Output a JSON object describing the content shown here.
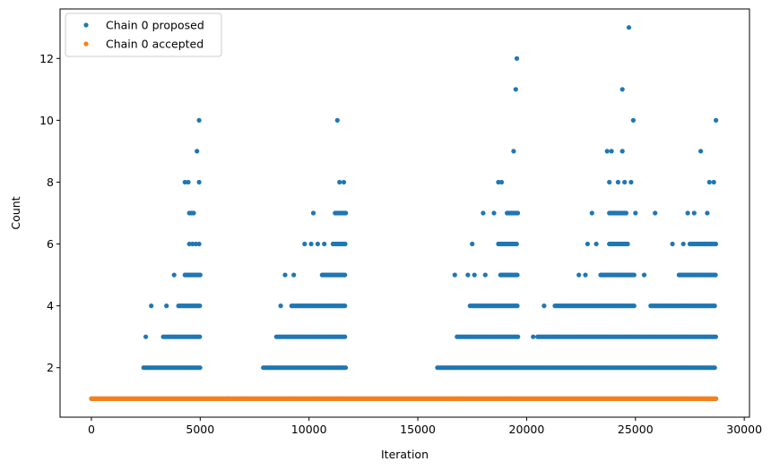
{
  "chart_data": {
    "type": "scatter",
    "title": "",
    "xlabel": "Iteration",
    "ylabel": "Count",
    "xlim": [
      -1440,
      30240
    ],
    "ylim": [
      0.4,
      13.6
    ],
    "xticks": [
      0,
      5000,
      10000,
      15000,
      20000,
      25000,
      30000
    ],
    "yticks": [
      2,
      4,
      6,
      8,
      10,
      12
    ],
    "grid": false,
    "legend_position": "top-left",
    "series": [
      {
        "name": "Chain 0 proposed",
        "color": "#1f77b4",
        "bands": [
          {
            "y": 1,
            "x_start": 0,
            "x_end": 28700
          },
          {
            "y": 2,
            "x_start": 2400,
            "x_end": 5000
          },
          {
            "y": 2,
            "x_start": 7900,
            "x_end": 11700
          },
          {
            "y": 2,
            "x_start": 15900,
            "x_end": 28700
          },
          {
            "y": 3,
            "x_start": 3300,
            "x_end": 5000
          },
          {
            "y": 3,
            "x_start": 8500,
            "x_end": 11700
          },
          {
            "y": 3,
            "x_start": 16800,
            "x_end": 19600
          },
          {
            "y": 3,
            "x_start": 20500,
            "x_end": 28700
          },
          {
            "y": 4,
            "x_start": 4000,
            "x_end": 5000
          },
          {
            "y": 4,
            "x_start": 9200,
            "x_end": 11700
          },
          {
            "y": 4,
            "x_start": 17400,
            "x_end": 19600
          },
          {
            "y": 4,
            "x_start": 21300,
            "x_end": 25000
          },
          {
            "y": 4,
            "x_start": 25700,
            "x_end": 28700
          },
          {
            "y": 5,
            "x_start": 4300,
            "x_end": 5000
          },
          {
            "y": 5,
            "x_start": 10600,
            "x_end": 11700
          },
          {
            "y": 5,
            "x_start": 18800,
            "x_end": 19600
          },
          {
            "y": 5,
            "x_start": 23400,
            "x_end": 25000
          },
          {
            "y": 5,
            "x_start": 27000,
            "x_end": 28700
          },
          {
            "y": 6,
            "x_start": 11100,
            "x_end": 11700
          },
          {
            "y": 6,
            "x_start": 18700,
            "x_end": 19600
          },
          {
            "y": 6,
            "x_start": 23800,
            "x_end": 24700
          },
          {
            "y": 6,
            "x_start": 27500,
            "x_end": 28700
          },
          {
            "y": 7,
            "x_start": 11200,
            "x_end": 11700
          },
          {
            "y": 7,
            "x_start": 19100,
            "x_end": 19600
          },
          {
            "y": 7,
            "x_start": 23800,
            "x_end": 24600
          }
        ],
        "points": [
          {
            "x": 2500,
            "y": 3
          },
          {
            "x": 2750,
            "y": 4
          },
          {
            "x": 3450,
            "y": 4
          },
          {
            "x": 3800,
            "y": 5
          },
          {
            "x": 4500,
            "y": 6
          },
          {
            "x": 4650,
            "y": 6
          },
          {
            "x": 4800,
            "y": 6
          },
          {
            "x": 4950,
            "y": 6
          },
          {
            "x": 4500,
            "y": 7
          },
          {
            "x": 4600,
            "y": 7
          },
          {
            "x": 4700,
            "y": 7
          },
          {
            "x": 4300,
            "y": 8
          },
          {
            "x": 4450,
            "y": 8
          },
          {
            "x": 4950,
            "y": 8
          },
          {
            "x": 4850,
            "y": 9
          },
          {
            "x": 4950,
            "y": 10
          },
          {
            "x": 8700,
            "y": 4
          },
          {
            "x": 8900,
            "y": 5
          },
          {
            "x": 9300,
            "y": 5
          },
          {
            "x": 9800,
            "y": 6
          },
          {
            "x": 10100,
            "y": 6
          },
          {
            "x": 10400,
            "y": 6
          },
          {
            "x": 10700,
            "y": 6
          },
          {
            "x": 10200,
            "y": 7
          },
          {
            "x": 11300,
            "y": 10
          },
          {
            "x": 11400,
            "y": 8
          },
          {
            "x": 11600,
            "y": 8
          },
          {
            "x": 16700,
            "y": 5
          },
          {
            "x": 17300,
            "y": 5
          },
          {
            "x": 17600,
            "y": 5
          },
          {
            "x": 18100,
            "y": 5
          },
          {
            "x": 17500,
            "y": 6
          },
          {
            "x": 18000,
            "y": 7
          },
          {
            "x": 18500,
            "y": 7
          },
          {
            "x": 18700,
            "y": 8
          },
          {
            "x": 18850,
            "y": 8
          },
          {
            "x": 19400,
            "y": 9
          },
          {
            "x": 19500,
            "y": 11
          },
          {
            "x": 19550,
            "y": 12
          },
          {
            "x": 20300,
            "y": 3
          },
          {
            "x": 20800,
            "y": 4
          },
          {
            "x": 22400,
            "y": 5
          },
          {
            "x": 22700,
            "y": 5
          },
          {
            "x": 22800,
            "y": 6
          },
          {
            "x": 23200,
            "y": 6
          },
          {
            "x": 23000,
            "y": 7
          },
          {
            "x": 23800,
            "y": 8
          },
          {
            "x": 24200,
            "y": 8
          },
          {
            "x": 24500,
            "y": 8
          },
          {
            "x": 24800,
            "y": 8
          },
          {
            "x": 23700,
            "y": 9
          },
          {
            "x": 23900,
            "y": 9
          },
          {
            "x": 24400,
            "y": 9
          },
          {
            "x": 24400,
            "y": 11
          },
          {
            "x": 24700,
            "y": 13
          },
          {
            "x": 24900,
            "y": 10
          },
          {
            "x": 25000,
            "y": 7
          },
          {
            "x": 25400,
            "y": 5
          },
          {
            "x": 25900,
            "y": 7
          },
          {
            "x": 26700,
            "y": 6
          },
          {
            "x": 27200,
            "y": 6
          },
          {
            "x": 27400,
            "y": 7
          },
          {
            "x": 27700,
            "y": 7
          },
          {
            "x": 28000,
            "y": 9
          },
          {
            "x": 28300,
            "y": 7
          },
          {
            "x": 28400,
            "y": 8
          },
          {
            "x": 28600,
            "y": 8
          },
          {
            "x": 28700,
            "y": 10
          },
          {
            "x": 28200,
            "y": 6
          },
          {
            "x": 28500,
            "y": 6
          }
        ]
      },
      {
        "name": "Chain 0 accepted",
        "color": "#ff7f0e",
        "bands": [
          {
            "y": 1,
            "x_start": 0,
            "x_end": 28700
          }
        ],
        "points": []
      }
    ]
  }
}
